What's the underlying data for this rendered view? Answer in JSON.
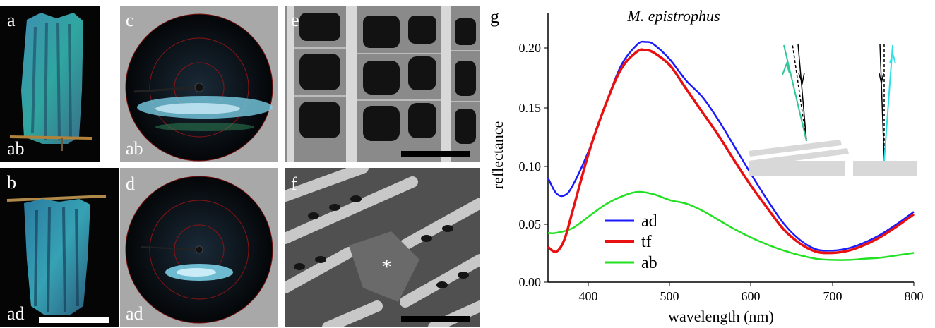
{
  "figure": {
    "panels": {
      "a": {
        "letter": "a",
        "side": "ab"
      },
      "b": {
        "letter": "b",
        "side": "ad"
      },
      "c": {
        "letter": "c",
        "side": "ab"
      },
      "d": {
        "letter": "d",
        "side": "ad"
      },
      "e": {
        "letter": "e"
      },
      "f": {
        "letter": "f",
        "marker": "*"
      }
    },
    "colors": {
      "ad": "#1a1aff",
      "tf": "#e81010",
      "ab": "#22e022",
      "inset_left_ray": "#2ec79a",
      "inset_right_ray": "#2ee0e8"
    }
  },
  "chart_data": {
    "panel_letter": "g",
    "type": "line",
    "title": "M. epistrophus",
    "xlabel": "wavelength (nm)",
    "ylabel": "reflectance",
    "xlim": [
      350,
      800
    ],
    "ylim": [
      0,
      0.23
    ],
    "xticks": [
      "400",
      "500",
      "600",
      "700",
      "800"
    ],
    "yticks": [
      "0.00",
      "0.05",
      "0.10",
      "0.15",
      "0.20"
    ],
    "legend_position": "lower-left",
    "series": [
      {
        "name": "ad",
        "x": [
          350,
          360,
          370,
          380,
          400,
          420,
          440,
          460,
          470,
          480,
          500,
          520,
          540,
          560,
          580,
          600,
          620,
          640,
          660,
          680,
          700,
          720,
          740,
          760,
          780,
          800
        ],
        "y": [
          0.089,
          0.076,
          0.074,
          0.082,
          0.112,
          0.15,
          0.185,
          0.203,
          0.205,
          0.203,
          0.19,
          0.172,
          0.158,
          0.138,
          0.115,
          0.092,
          0.07,
          0.05,
          0.036,
          0.028,
          0.027,
          0.029,
          0.034,
          0.041,
          0.05,
          0.06
        ]
      },
      {
        "name": "tf",
        "x": [
          350,
          360,
          370,
          380,
          400,
          420,
          440,
          460,
          470,
          480,
          500,
          520,
          540,
          560,
          580,
          600,
          620,
          640,
          660,
          680,
          700,
          720,
          740,
          760,
          780,
          800
        ],
        "y": [
          0.03,
          0.026,
          0.036,
          0.06,
          0.11,
          0.15,
          0.182,
          0.197,
          0.198,
          0.196,
          0.185,
          0.165,
          0.145,
          0.125,
          0.103,
          0.082,
          0.063,
          0.045,
          0.033,
          0.026,
          0.025,
          0.027,
          0.032,
          0.039,
          0.048,
          0.058
        ]
      },
      {
        "name": "ab",
        "x": [
          350,
          360,
          380,
          400,
          420,
          440,
          460,
          480,
          500,
          520,
          540,
          560,
          580,
          600,
          620,
          640,
          660,
          680,
          700,
          720,
          740,
          760,
          780,
          800
        ],
        "y": [
          0.042,
          0.042,
          0.046,
          0.056,
          0.066,
          0.073,
          0.077,
          0.075,
          0.07,
          0.067,
          0.061,
          0.053,
          0.045,
          0.038,
          0.032,
          0.027,
          0.023,
          0.02,
          0.019,
          0.019,
          0.02,
          0.021,
          0.023,
          0.025
        ]
      }
    ]
  }
}
